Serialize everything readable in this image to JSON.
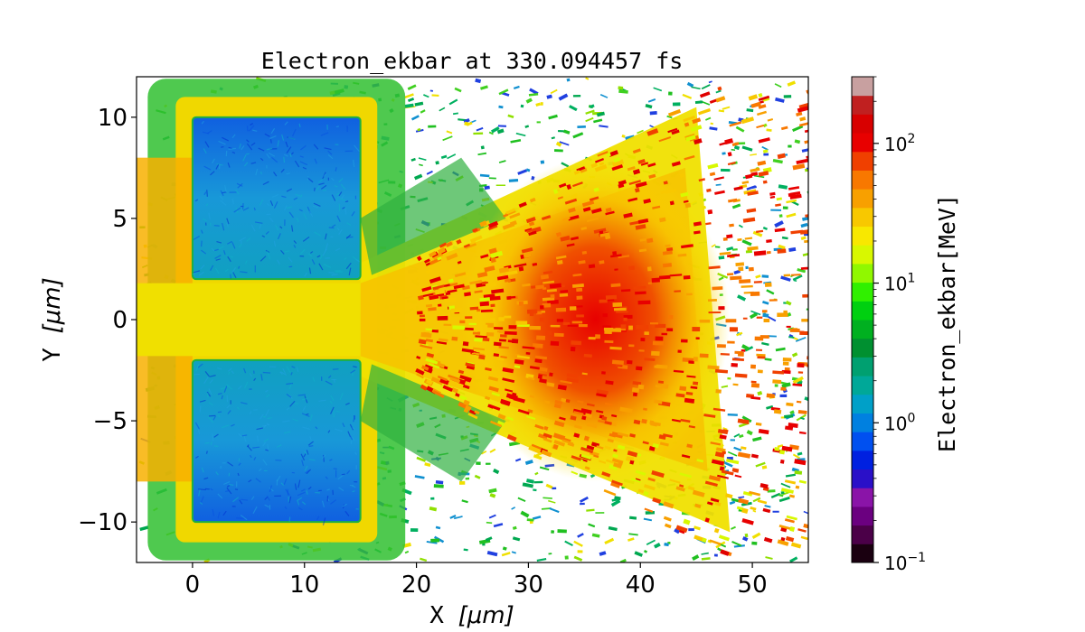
{
  "chart_data": {
    "type": "heatmap",
    "title": "Electron_ekbar at 330.094457 fs",
    "xlabel_prefix": "X",
    "xlabel_unit": "[μm]",
    "ylabel_prefix": "Y",
    "ylabel_unit": "[μm]",
    "xlim": [
      -5,
      55
    ],
    "ylim": [
      -12,
      12
    ],
    "x_ticks": [
      {
        "value": 0,
        "label": "0"
      },
      {
        "value": 10,
        "label": "10"
      },
      {
        "value": 20,
        "label": "20"
      },
      {
        "value": 30,
        "label": "30"
      },
      {
        "value": 40,
        "label": "40"
      },
      {
        "value": 50,
        "label": "50"
      }
    ],
    "y_ticks": [
      {
        "value": 10,
        "label": "10"
      },
      {
        "value": 5,
        "label": "5"
      },
      {
        "value": 0,
        "label": "0"
      },
      {
        "value": -5,
        "label": "−5"
      },
      {
        "value": -10,
        "label": "−10"
      }
    ],
    "colorbar": {
      "label": "Electron_ekbar[MeV]",
      "scale": "log",
      "range": [
        0.1,
        300
      ],
      "ticks": [
        {
          "value": 0.1,
          "base": "10",
          "exp": "−1"
        },
        {
          "value": 1,
          "base": "10",
          "exp": "0"
        },
        {
          "value": 10,
          "base": "10",
          "exp": "1"
        },
        {
          "value": 100,
          "base": "10",
          "exp": "2"
        }
      ],
      "levels": [
        "#1a0010",
        "#4b0048",
        "#6b0080",
        "#8a14a8",
        "#2a10c8",
        "#0020e0",
        "#0050f0",
        "#0080e0",
        "#00a0c8",
        "#00a898",
        "#00a070",
        "#009030",
        "#00b020",
        "#00d010",
        "#30f000",
        "#90f800",
        "#d8f800",
        "#f8e800",
        "#f8c800",
        "#f8a000",
        "#f87800",
        "#f04000",
        "#e80000",
        "#d80000",
        "#c02020",
        "#c8a0a0"
      ]
    },
    "regions": [
      {
        "name": "upper target block",
        "x": [
          0,
          15
        ],
        "y": [
          2,
          10
        ],
        "value_mev": 1.2
      },
      {
        "name": "lower target block",
        "x": [
          0,
          15
        ],
        "y": [
          -10,
          -2
        ],
        "value_mev": 1.2
      },
      {
        "name": "channel",
        "x": [
          -5,
          15
        ],
        "y": [
          -1.8,
          1.8
        ],
        "value_mev": 25
      },
      {
        "name": "hot spot",
        "x": [
          30,
          42
        ],
        "y": [
          -5,
          5
        ],
        "value_mev": 150
      }
    ]
  },
  "colors": {
    "block": "#1890d8",
    "block_edge": "#f0e000",
    "halo": "#20c020"
  }
}
